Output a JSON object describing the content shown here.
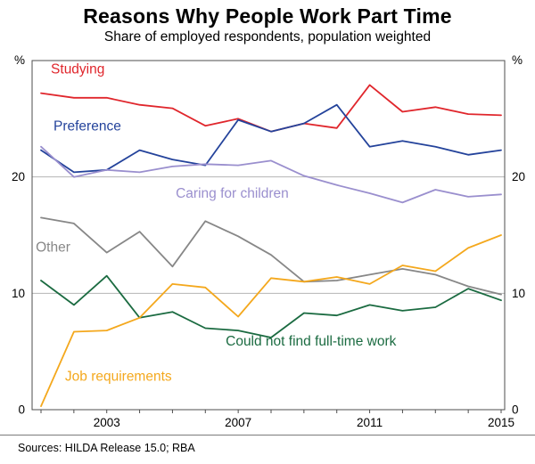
{
  "footer": {
    "source": "Sources: HILDA Release 15.0; RBA"
  },
  "chart_data": {
    "type": "line",
    "title": "Reasons Why People Work Part Time",
    "subtitle": "Share of employed respondents, population weighted",
    "unit_left": "%",
    "unit_right": "%",
    "ylim": [
      0,
      30
    ],
    "y_gridlines": [
      10,
      20
    ],
    "y_tick_labels": [
      0,
      10,
      20
    ],
    "x_tick_labels": [
      2003,
      2007,
      2011,
      2015
    ],
    "x": [
      2001,
      2002,
      2003,
      2004,
      2005,
      2006,
      2007,
      2008,
      2009,
      2010,
      2011,
      2012,
      2013,
      2014,
      2015
    ],
    "frame_color": "#4d4d4d",
    "gridline_color": "#b5b5b5",
    "series": [
      {
        "name": "Studying",
        "color": "#e0262c",
        "values": [
          27.2,
          26.8,
          26.8,
          26.2,
          25.9,
          24.4,
          25.0,
          23.9,
          24.6,
          24.2,
          27.9,
          25.6,
          26.0,
          25.4,
          25.3
        ],
        "label": {
          "text": "Studying",
          "year": 2001.3,
          "value": 28.9
        }
      },
      {
        "name": "Preference",
        "color": "#24439b",
        "values": [
          22.3,
          20.4,
          20.6,
          22.3,
          21.5,
          21.0,
          24.9,
          23.9,
          24.6,
          26.2,
          22.6,
          23.1,
          22.6,
          21.9,
          22.3
        ],
        "label": {
          "text": "Preference",
          "year": 2001.38,
          "value": 24.0
        }
      },
      {
        "name": "Caring for children",
        "color": "#9a8fce",
        "values": [
          22.6,
          20.0,
          20.6,
          20.4,
          20.9,
          21.1,
          21.0,
          21.4,
          20.1,
          19.3,
          18.6,
          17.8,
          18.9,
          18.3,
          18.5
        ],
        "label": {
          "text": "Caring for children",
          "year": 2005.1,
          "value": 18.2
        }
      },
      {
        "name": "Other",
        "color": "#878787",
        "values": [
          16.5,
          16.0,
          13.5,
          15.3,
          12.3,
          16.2,
          14.9,
          13.3,
          11.0,
          11.1,
          11.6,
          12.1,
          11.6,
          10.6,
          9.9
        ],
        "label": {
          "text": "Other",
          "year": 2000.84,
          "value": 13.6
        }
      },
      {
        "name": "Could not find full-time work",
        "color": "#1b6b41",
        "values": [
          11.1,
          9.0,
          11.5,
          7.9,
          8.4,
          7.0,
          6.8,
          6.2,
          8.3,
          8.1,
          9.0,
          8.5,
          8.8,
          10.4,
          9.4
        ],
        "label": {
          "text": "Could not find full-time work",
          "year": 2006.62,
          "value": 5.5
        }
      },
      {
        "name": "Job requirements",
        "color": "#f4a81d",
        "values": [
          0.3,
          6.7,
          6.8,
          7.9,
          10.8,
          10.5,
          8.0,
          11.3,
          11.0,
          11.4,
          10.8,
          12.4,
          11.9,
          13.9,
          15.0
        ],
        "label": {
          "text": "Job requirements",
          "year": 2001.73,
          "value": 2.5
        }
      }
    ]
  }
}
